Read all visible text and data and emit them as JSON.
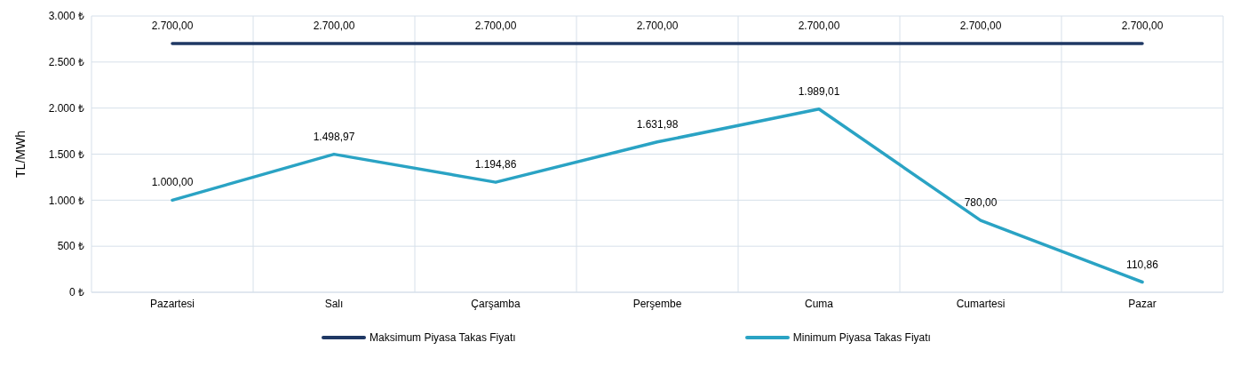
{
  "chart_data": {
    "type": "line",
    "ylabel": "TL/MWh",
    "categories": [
      "Pazartesi",
      "Salı",
      "Çarşamba",
      "Perşembe",
      "Cuma",
      "Cumartesi",
      "Pazar"
    ],
    "series": [
      {
        "name": "Maksimum Piyasa Takas Fiyatı",
        "color": "#1f3864",
        "values": [
          2700,
          2700,
          2700,
          2700,
          2700,
          2700,
          2700
        ],
        "value_labels": [
          "2.700,00",
          "2.700,00",
          "2.700,00",
          "2.700,00",
          "2.700,00",
          "2.700,00",
          "2.700,00"
        ]
      },
      {
        "name": "Minimum Piyasa Takas Fiyatı",
        "color": "#2aa3c4",
        "values": [
          1000,
          1498.97,
          1194.86,
          1631.98,
          1989.01,
          780,
          110.86
        ],
        "value_labels": [
          "1.000,00",
          "1.498,97",
          "1.194,86",
          "1.631,98",
          "1.989,01",
          "780,00",
          "110,86"
        ]
      }
    ],
    "ylim": [
      0,
      3000
    ],
    "yticks": [
      {
        "value": 0,
        "label": "0 ₺"
      },
      {
        "value": 500,
        "label": "500 ₺"
      },
      {
        "value": 1000,
        "label": "1.000 ₺"
      },
      {
        "value": 1500,
        "label": "1.500 ₺"
      },
      {
        "value": 2000,
        "label": "2.000 ₺"
      },
      {
        "value": 2500,
        "label": "2.500 ₺"
      },
      {
        "value": 3000,
        "label": "3.000 ₺"
      }
    ],
    "grid": true,
    "legend": "bottom",
    "marker": "none",
    "line_style": "solid"
  }
}
